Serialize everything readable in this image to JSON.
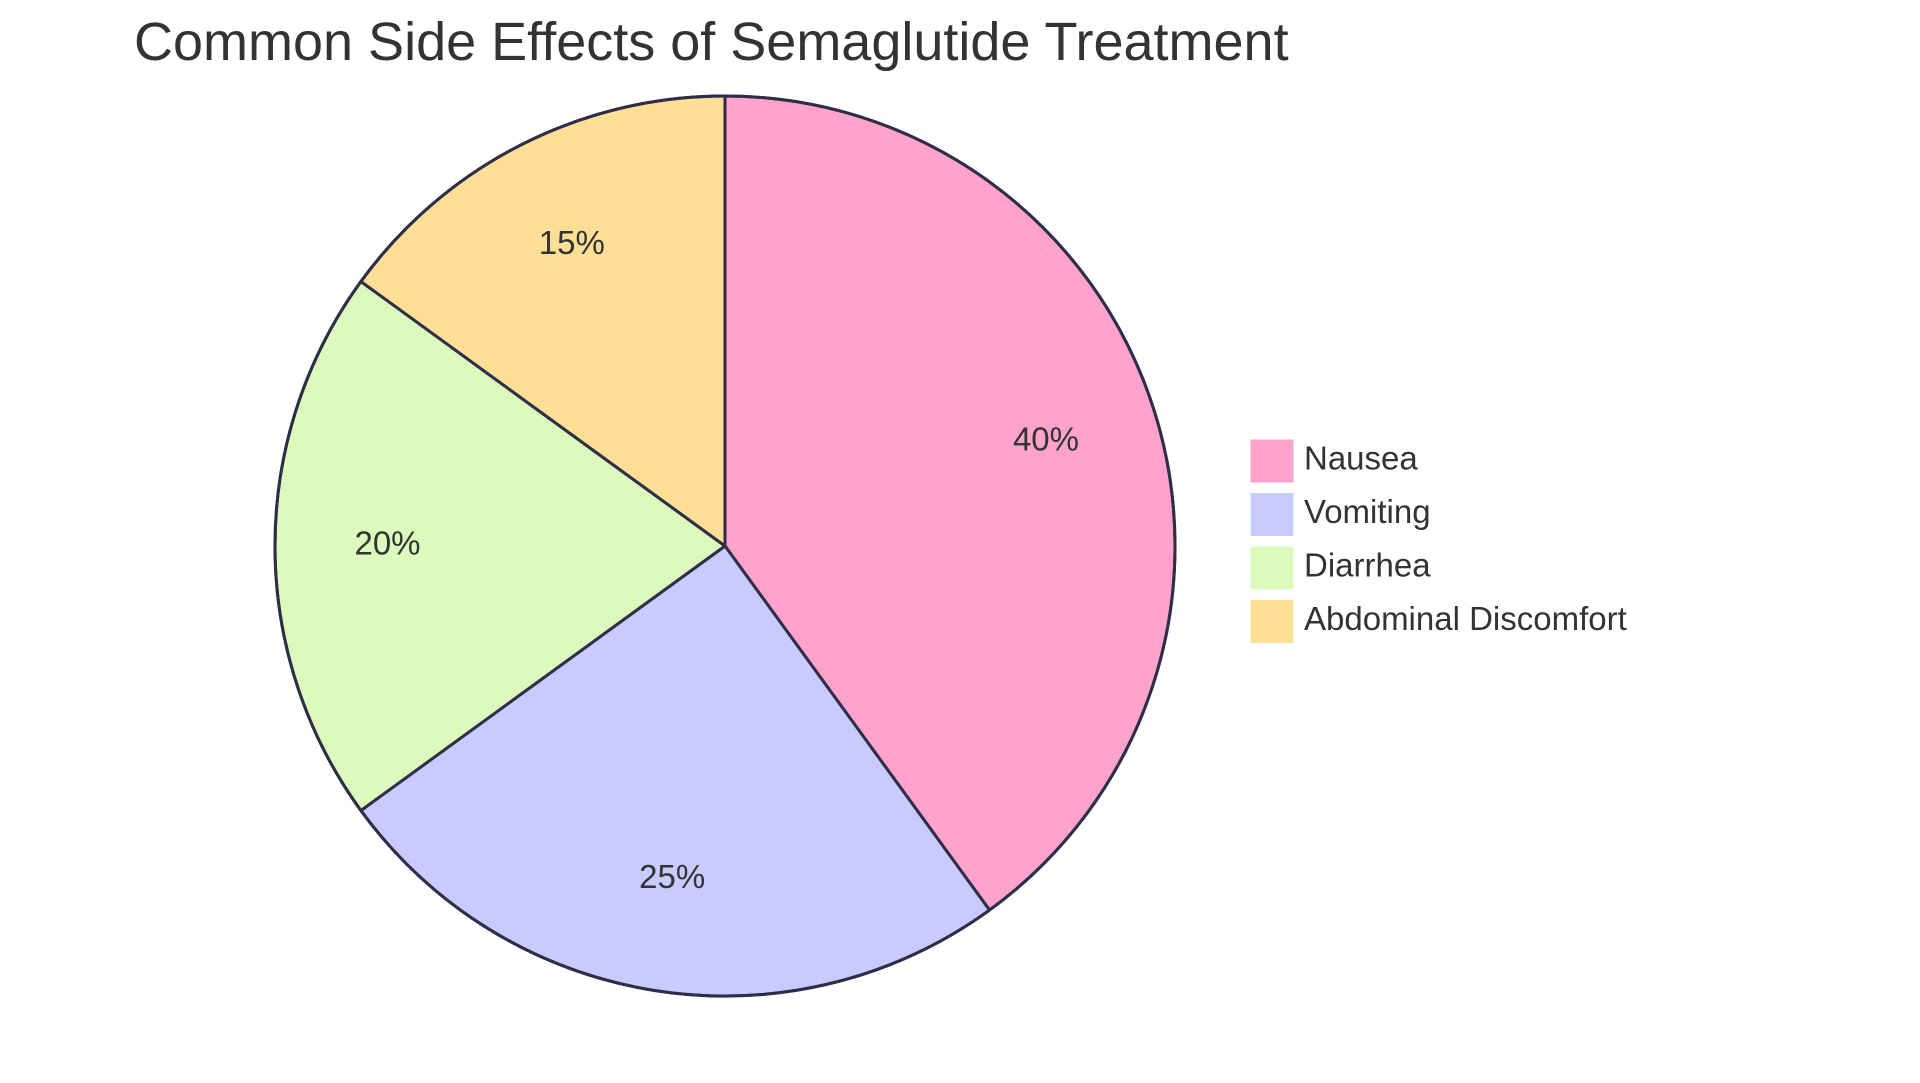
{
  "chart_data": {
    "type": "pie",
    "title": "Common Side Effects of Semaglutide Treatment",
    "slices": [
      {
        "label": "Nausea",
        "value": 40,
        "display": "40%",
        "color": "#ffa3cc"
      },
      {
        "label": "Vomiting",
        "value": 25,
        "display": "25%",
        "color": "#c8cbff"
      },
      {
        "label": "Diarrhea",
        "value": 20,
        "display": "20%",
        "color": "#dbfabb"
      },
      {
        "label": "Abdominal Discomfort",
        "value": 15,
        "display": "15%",
        "color": "#fedf95"
      }
    ],
    "legend_position": "right",
    "start": "top",
    "direction": "clockwise",
    "stroke_color": "#2e2e48"
  }
}
